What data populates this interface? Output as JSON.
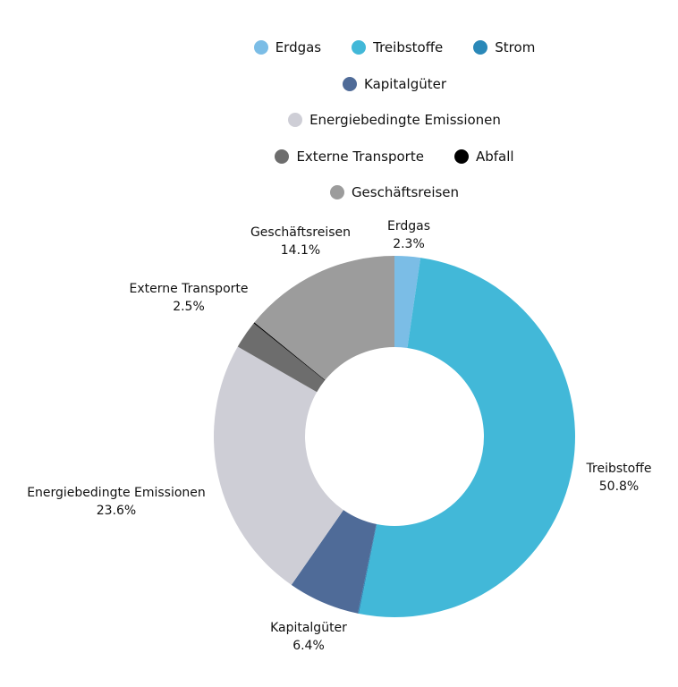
{
  "chart_data": {
    "type": "pie",
    "variant": "donut",
    "title": "",
    "legend_position": "top",
    "series": [
      {
        "name": "Erdgas",
        "value": 2.3,
        "label": "2.3%",
        "color": "#7bbde6"
      },
      {
        "name": "Treibstoffe",
        "value": 50.8,
        "label": "50.8%",
        "color": "#42b8d8"
      },
      {
        "name": "Strom",
        "value": 0.1,
        "label": "",
        "color": "#2a88b8"
      },
      {
        "name": "Kapitalgüter",
        "value": 6.4,
        "label": "6.4%",
        "color": "#4f6b98"
      },
      {
        "name": "Energiebedingte Emissionen",
        "value": 23.6,
        "label": "23.6%",
        "color": "#ceced6"
      },
      {
        "name": "Externe Transporte",
        "value": 2.5,
        "label": "2.5%",
        "color": "#6d6d6d"
      },
      {
        "name": "Abfall",
        "value": 0.1,
        "label": "",
        "color": "#000000"
      },
      {
        "name": "Geschäftsreisen",
        "value": 14.1,
        "label": "14.1%",
        "color": "#9c9c9c"
      }
    ]
  }
}
